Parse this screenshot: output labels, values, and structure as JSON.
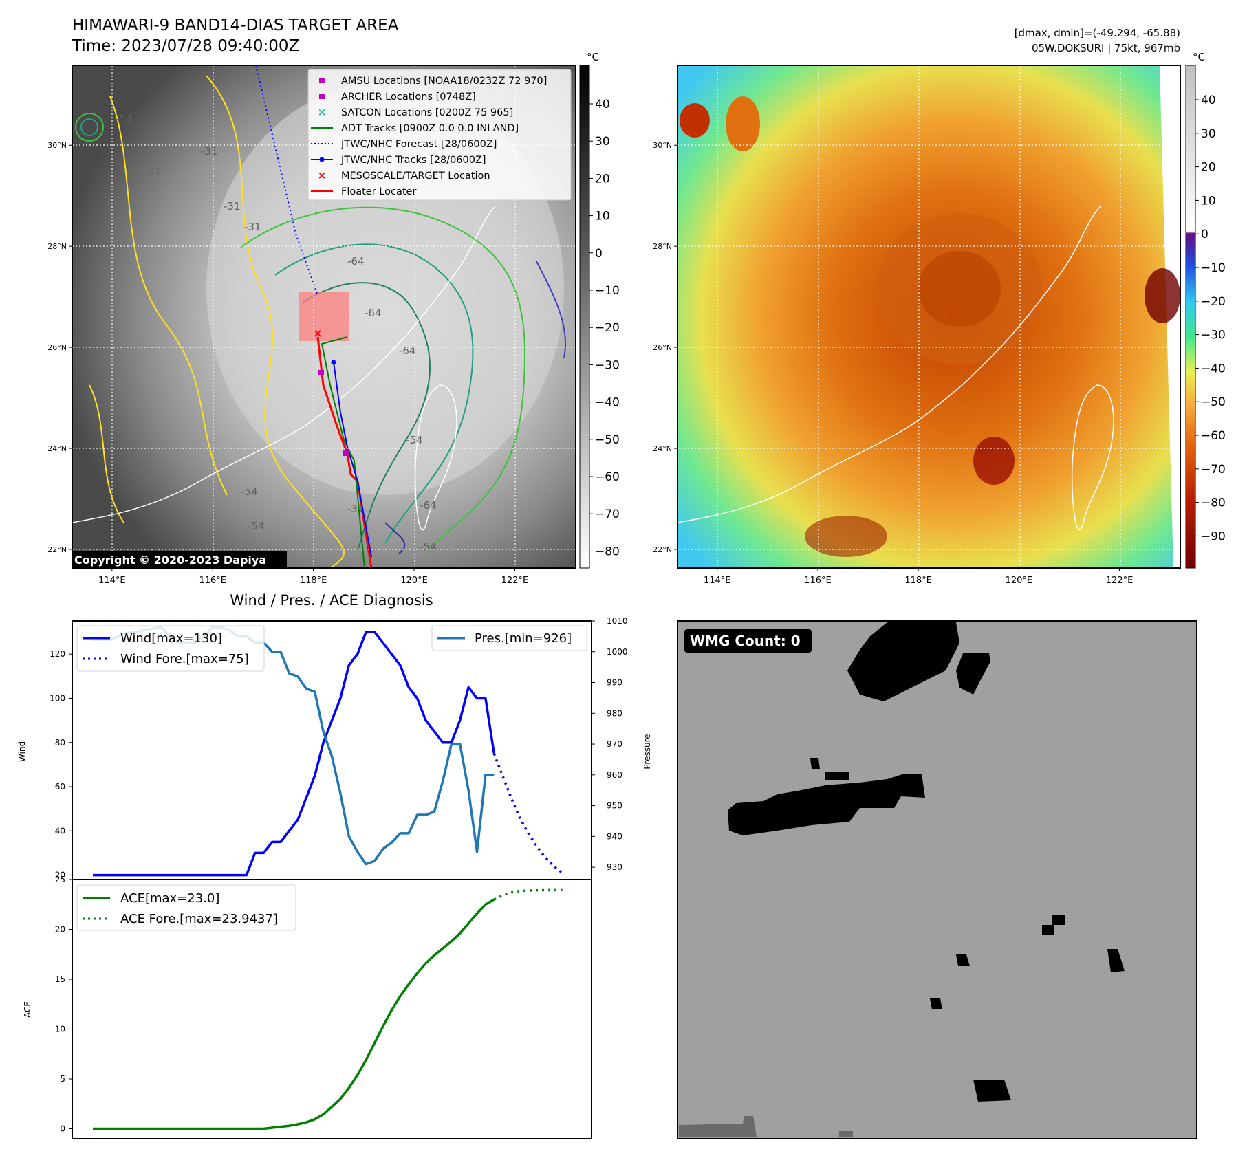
{
  "header": {
    "title_line1": "HIMAWARI-9 BAND14-DIAS TARGET AREA",
    "title_line2": "Time: 2023/07/28 09:40:00Z",
    "stats_line1": "[dmax, dmin]=(-49.294, -65.88)",
    "stats_line2": "05W.DOKSURI | 75kt, 967mb"
  },
  "map_left": {
    "lon_ticks": [
      "114°E",
      "116°E",
      "118°E",
      "120°E",
      "122°E"
    ],
    "lat_ticks": [
      "30°N",
      "28°N",
      "26°N",
      "24°N",
      "22°N"
    ],
    "colorbar_unit": "°C",
    "colorbar_ticks": [
      "40",
      "30",
      "20",
      "10",
      "0",
      "−10",
      "−20",
      "−30",
      "−40",
      "−50",
      "−60",
      "−70",
      "−80"
    ],
    "contour_labels": [
      "-31",
      "-31",
      "-31",
      "-31",
      "-31",
      "-54",
      "-54",
      "-54",
      "-54",
      "-64",
      "-64",
      "-64",
      "-64",
      "-31",
      "-54"
    ],
    "copyright": "Copyright © 2020-2023 Dapiya",
    "legend": [
      {
        "label": "AMSU Locations [NOAA18/0232Z 72 970]",
        "color": "#c000c0",
        "marker": "square"
      },
      {
        "label": "ARCHER Locations [0748Z]",
        "color": "#c000c0",
        "marker": "square"
      },
      {
        "label": "SATCON Locations [0200Z 75 965]",
        "color": "#20b0b0",
        "marker": "x"
      },
      {
        "label": "ADT Tracks [0900Z 0.0 0.0 INLAND]",
        "color": "#008000",
        "marker": "line"
      },
      {
        "label": "JTWC/NHC Forecast [28/0600Z]",
        "color": "#0000ff",
        "marker": "dotted"
      },
      {
        "label": "JTWC/NHC Tracks [28/0600Z]",
        "color": "#0000ff",
        "marker": "line-dot"
      },
      {
        "label": "MESOSCALE/TARGET Location",
        "color": "#ff0000",
        "marker": "x"
      },
      {
        "label": "Floater Locater",
        "color": "#ff0000",
        "marker": "line"
      }
    ]
  },
  "map_right": {
    "lon_ticks": [
      "114°E",
      "116°E",
      "118°E",
      "120°E",
      "122°E"
    ],
    "lat_ticks": [
      "30°N",
      "28°N",
      "26°N",
      "24°N",
      "22°N"
    ],
    "colorbar_unit": "°C",
    "colorbar_ticks": [
      "40",
      "30",
      "20",
      "10",
      "0",
      "−10",
      "−20",
      "−30",
      "−40",
      "−50",
      "−60",
      "−70",
      "−80",
      "−90"
    ]
  },
  "chart_data": [
    {
      "type": "line",
      "title": "Wind / Pres. / ACE Diagnosis",
      "ylabel": "Wind",
      "ylabel_right": "Pressure",
      "ylim": [
        18,
        135
      ],
      "ylim_right": [
        926,
        1010
      ],
      "x_range": [
        0,
        56
      ],
      "yticks": [
        "20",
        "40",
        "60",
        "80",
        "100",
        "120"
      ],
      "yticks_right": [
        "930",
        "940",
        "950",
        "960",
        "970",
        "980",
        "990",
        "1000",
        "1010"
      ],
      "series": [
        {
          "name": "Wind[max=130]",
          "color": "#0000ff",
          "style": "solid",
          "axis": "left",
          "x": [
            0,
            18,
            19,
            20,
            21,
            22,
            23,
            24,
            25,
            26,
            27,
            28,
            29,
            30,
            31,
            32,
            33,
            34,
            35,
            36,
            37,
            38,
            39,
            40,
            41,
            42,
            43,
            44,
            45,
            46,
            47
          ],
          "values": [
            20,
            20,
            30,
            30,
            35,
            35,
            40,
            45,
            55,
            65,
            80,
            90,
            100,
            115,
            120,
            130,
            130,
            125,
            120,
            115,
            105,
            100,
            90,
            85,
            80,
            80,
            90,
            105,
            100,
            100,
            75
          ]
        },
        {
          "name": "Wind Fore.[max=75]",
          "color": "#0000ff",
          "style": "dotted",
          "axis": "left",
          "x": [
            47,
            48,
            49,
            50,
            51,
            52,
            53,
            54,
            55
          ],
          "values": [
            75,
            65,
            55,
            46,
            39,
            33,
            28,
            24,
            21
          ]
        },
        {
          "name": "Pres.[min=926]",
          "color": "#1f77b4",
          "style": "solid",
          "axis": "right",
          "x": [
            0,
            2,
            4,
            6,
            8,
            9,
            10,
            12,
            13,
            14,
            15,
            16,
            17,
            18,
            19,
            20,
            21,
            22,
            23,
            24,
            25,
            26,
            27,
            28,
            29,
            30,
            31,
            32,
            33,
            34,
            35,
            36,
            37,
            38,
            39,
            40,
            41,
            42,
            43,
            44,
            45,
            46,
            47
          ],
          "values": [
            1004,
            1004,
            1006,
            1007,
            1008,
            1005,
            1003,
            1003,
            1005,
            1008,
            1008,
            1007,
            1005,
            1005,
            1003,
            1003,
            1000,
            1000,
            993,
            992,
            988,
            987,
            974,
            966,
            954,
            940,
            935,
            931,
            932,
            936,
            938,
            941,
            941,
            947,
            947,
            948,
            958,
            970,
            970,
            955,
            935,
            960,
            960
          ]
        }
      ],
      "legend": [
        "Wind[max=130]",
        "Wind Fore.[max=75]",
        "Pres.[min=926]"
      ]
    },
    {
      "type": "line",
      "ylabel": "ACE",
      "ylim": [
        -1,
        25
      ],
      "x_range": [
        0,
        56
      ],
      "yticks": [
        "0",
        "5",
        "10",
        "15",
        "20",
        "25"
      ],
      "series": [
        {
          "name": "ACE[max=23.0]",
          "color": "#008000",
          "style": "solid",
          "x": [
            0,
            20,
            21,
            22,
            23,
            24,
            25,
            26,
            27,
            28,
            29,
            30,
            31,
            32,
            33,
            34,
            35,
            36,
            37,
            38,
            39,
            40,
            41,
            42,
            43,
            44,
            45,
            46,
            47
          ],
          "values": [
            0,
            0,
            0.1,
            0.2,
            0.3,
            0.45,
            0.65,
            0.95,
            1.45,
            2.2,
            3.0,
            4.1,
            5.4,
            6.9,
            8.6,
            10.3,
            11.9,
            13.3,
            14.5,
            15.6,
            16.6,
            17.4,
            18.1,
            18.8,
            19.6,
            20.6,
            21.6,
            22.5,
            23.0
          ]
        },
        {
          "name": "ACE Fore.[max=23.9437]",
          "color": "#008000",
          "style": "dotted",
          "x": [
            47,
            48,
            49,
            50,
            51,
            52,
            53,
            54,
            55
          ],
          "values": [
            23.0,
            23.4,
            23.7,
            23.85,
            23.9,
            23.92,
            23.93,
            23.94,
            23.94
          ]
        }
      ],
      "legend": [
        "ACE[max=23.0]",
        "ACE Fore.[max=23.9437]"
      ]
    }
  ],
  "wmg_panel": {
    "label": "WMG Count: 0"
  }
}
